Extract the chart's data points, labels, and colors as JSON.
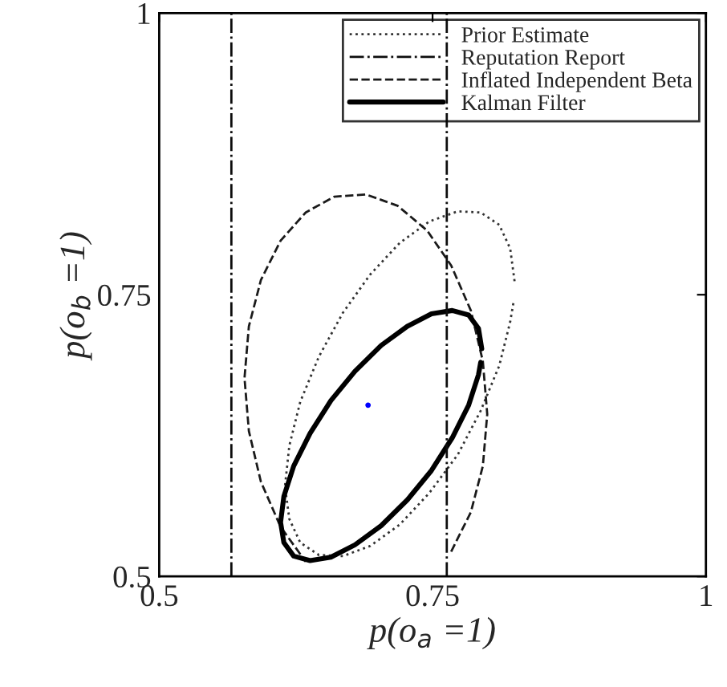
{
  "chart_data": {
    "type": "line",
    "xlabel": "p(o$_{a}$ =1)",
    "ylabel": "p(o$_{b}$ =1)",
    "xlim": [
      0.5,
      1
    ],
    "ylim": [
      0.5,
      1
    ],
    "xticks": [
      0.5,
      0.75,
      1
    ],
    "yticks": [
      0.5,
      0.75,
      1
    ],
    "grid": false,
    "legend": "top right",
    "marker": "none",
    "ref_lines": [
      {
        "axis": "x",
        "value": 0.763,
        "color": "#0d0d0d",
        "line_style": "dashdot"
      }
    ],
    "series": [
      {
        "name": "Prior Estimate",
        "color": "#333333",
        "line_style": "dotted",
        "x": [
          0.825,
          0.821,
          0.811,
          0.794,
          0.773,
          0.747,
          0.72,
          0.693,
          0.668,
          0.646,
          0.629,
          0.619,
          0.615,
          0.619,
          0.629,
          0.646,
          0.668,
          0.693,
          0.72,
          0.747,
          0.773,
          0.794,
          0.811,
          0.821,
          0.824
        ],
        "values": [
          0.762,
          0.791,
          0.812,
          0.823,
          0.824,
          0.815,
          0.796,
          0.768,
          0.734,
          0.695,
          0.655,
          0.616,
          0.58,
          0.551,
          0.53,
          0.519,
          0.518,
          0.527,
          0.546,
          0.574,
          0.608,
          0.647,
          0.687,
          0.726,
          0.743
        ]
      },
      {
        "name": "Reputation Report",
        "color": "#0d0d0d",
        "line_style": "dashdot",
        "x": [
          0.566,
          0.566
        ],
        "values": [
          0.5,
          1.0
        ]
      },
      {
        "name": "Inflated Independent Beta",
        "color": "#1a1a1a",
        "line_style": "dashed",
        "x": [
          0.767,
          0.785,
          0.796,
          0.8,
          0.796,
          0.785,
          0.767,
          0.745,
          0.718,
          0.689,
          0.66,
          0.634,
          0.611,
          0.593,
          0.582,
          0.578,
          0.582,
          0.593,
          0.611,
          0.634
        ],
        "values": [
          0.522,
          0.557,
          0.598,
          0.644,
          0.691,
          0.736,
          0.776,
          0.807,
          0.829,
          0.839,
          0.837,
          0.823,
          0.798,
          0.763,
          0.722,
          0.676,
          0.629,
          0.584,
          0.544,
          0.513
        ]
      },
      {
        "name": "Kalman Filter",
        "color": "#000000",
        "line_style": "solid",
        "x": [
          0.795,
          0.792,
          0.783,
          0.768,
          0.749,
          0.727,
          0.703,
          0.679,
          0.657,
          0.638,
          0.623,
          0.614,
          0.611,
          0.614,
          0.623,
          0.638,
          0.657,
          0.679,
          0.703,
          0.727,
          0.749,
          0.768,
          0.783,
          0.792,
          0.794
        ],
        "values": [
          0.702,
          0.72,
          0.732,
          0.736,
          0.733,
          0.722,
          0.705,
          0.682,
          0.656,
          0.627,
          0.598,
          0.571,
          0.548,
          0.53,
          0.518,
          0.514,
          0.517,
          0.528,
          0.545,
          0.568,
          0.594,
          0.623,
          0.652,
          0.679,
          0.69
        ]
      },
      {
        "type": "scatter",
        "color": "#0000ff",
        "x": [
          0.691
        ],
        "values": [
          0.652
        ]
      }
    ]
  }
}
